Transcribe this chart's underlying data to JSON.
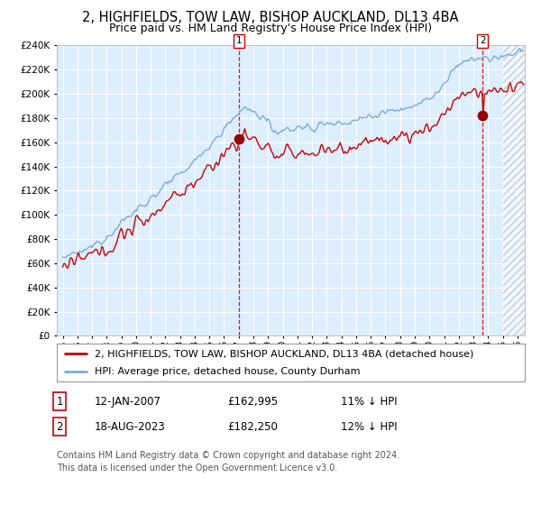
{
  "title": "2, HIGHFIELDS, TOW LAW, BISHOP AUCKLAND, DL13 4BA",
  "subtitle": "Price paid vs. HM Land Registry's House Price Index (HPI)",
  "legend_line1": "2, HIGHFIELDS, TOW LAW, BISHOP AUCKLAND, DL13 4BA (detached house)",
  "legend_line2": "HPI: Average price, detached house, County Durham",
  "footnote": "Contains HM Land Registry data © Crown copyright and database right 2024.\nThis data is licensed under the Open Government Licence v3.0.",
  "sale1_date": "12-JAN-2007",
  "sale1_price": 162995,
  "sale1_label": "11% ↓ HPI",
  "sale1_year": 2007.04,
  "sale2_date": "18-AUG-2023",
  "sale2_price": 182250,
  "sale2_label": "12% ↓ HPI",
  "sale2_year": 2023.63,
  "ylim": [
    0,
    240000
  ],
  "yticks": [
    0,
    20000,
    40000,
    60000,
    80000,
    100000,
    120000,
    140000,
    160000,
    180000,
    200000,
    220000,
    240000
  ],
  "xstart": 1995,
  "xend": 2026,
  "hpi_color": "#7aabdb",
  "price_color": "#cc0000",
  "dot_color": "#990000",
  "vline_color": "#cc0000",
  "plot_bg": "#ddeeff",
  "grid_color": "#ffffff",
  "hatch_color": "#aaaaaa",
  "title_fontsize": 10.5,
  "subtitle_fontsize": 9,
  "tick_fontsize": 7.5,
  "legend_fontsize": 8,
  "table_fontsize": 8.5,
  "footnote_fontsize": 7
}
